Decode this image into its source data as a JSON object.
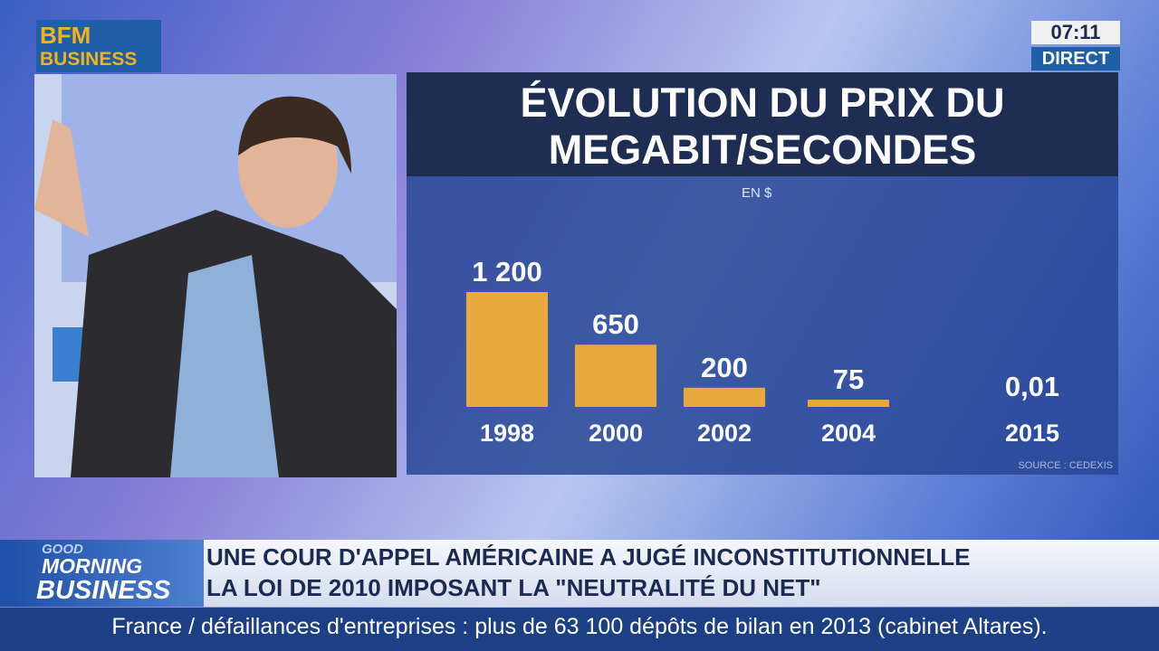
{
  "logo": {
    "line1": "BFM",
    "line2": "BUSINESS"
  },
  "clock": {
    "time": "07:11",
    "status": "DIRECT"
  },
  "chart_data": {
    "type": "bar",
    "title": "ÉVOLUTION DU PRIX DU MEGABIT/SECONDES",
    "subtitle": "EN $",
    "categories": [
      "1998",
      "2000",
      "2002",
      "2004",
      "2015"
    ],
    "values": [
      1200,
      650,
      200,
      75,
      0.01
    ],
    "value_labels": [
      "1 200",
      "650",
      "200",
      "75",
      "0,01"
    ],
    "color": "#e8a93a",
    "source": "SOURCE : CEDEXIS"
  },
  "show": {
    "line1": "GOOD",
    "line2": "MORNING",
    "line3": "BUSINESS"
  },
  "headline": {
    "line1": "UNE COUR D'APPEL AMÉRICAINE A JUGÉ INCONSTITUTIONNELLE",
    "line2": "LA LOI DE 2010 IMPOSANT LA \"NEUTRALITÉ DU NET\""
  },
  "ticker": "France / défaillances d'entreprises : plus de 63 100 dépôts de bilan en 2013 (cabinet Altares)."
}
